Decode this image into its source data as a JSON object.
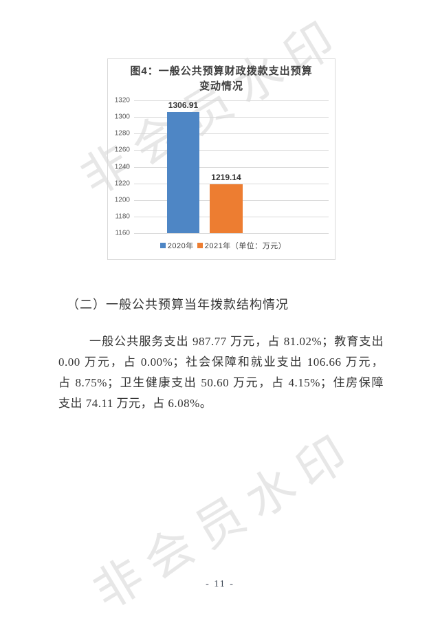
{
  "watermark": {
    "text": "非会员水印"
  },
  "chart_data": {
    "type": "bar",
    "title_line1": "图4：一般公共预算财政拨款支出预算",
    "title_line2": "变动情况",
    "categories": [
      "2020年",
      "2021年"
    ],
    "values": [
      1306.91,
      1219.14
    ],
    "value_labels": [
      "1306.91",
      "1219.14"
    ],
    "colors": [
      "#4e86c5",
      "#ed7d31"
    ],
    "unit_note": "（单位：万元）",
    "ylim": [
      1160,
      1320
    ],
    "ytick_step": 20,
    "yticks": [
      "1320",
      "1300",
      "1280",
      "1260",
      "1240",
      "1220",
      "1200",
      "1180",
      "1160"
    ],
    "grid": true,
    "legend_position": "bottom",
    "legend": [
      {
        "label": "2020年",
        "color": "#4e86c5"
      },
      {
        "label": "2021年（单位：万元）",
        "color": "#ed7d31"
      }
    ]
  },
  "body": {
    "heading": "（二）一般公共预算当年拨款结构情况",
    "paragraph_lines": [
      "一般公共服务支出 987.77 万元，占 81.02%；教育支出",
      "0.00 万元，占 0.00%；社会保障和就业支出 106.66 万元，",
      "占 8.75%；卫生健康支出 50.60 万元，占 4.15%；住房保障",
      "支出 74.11 万元，占 6.08%。"
    ]
  },
  "page": {
    "number_label": "- 11 -"
  }
}
